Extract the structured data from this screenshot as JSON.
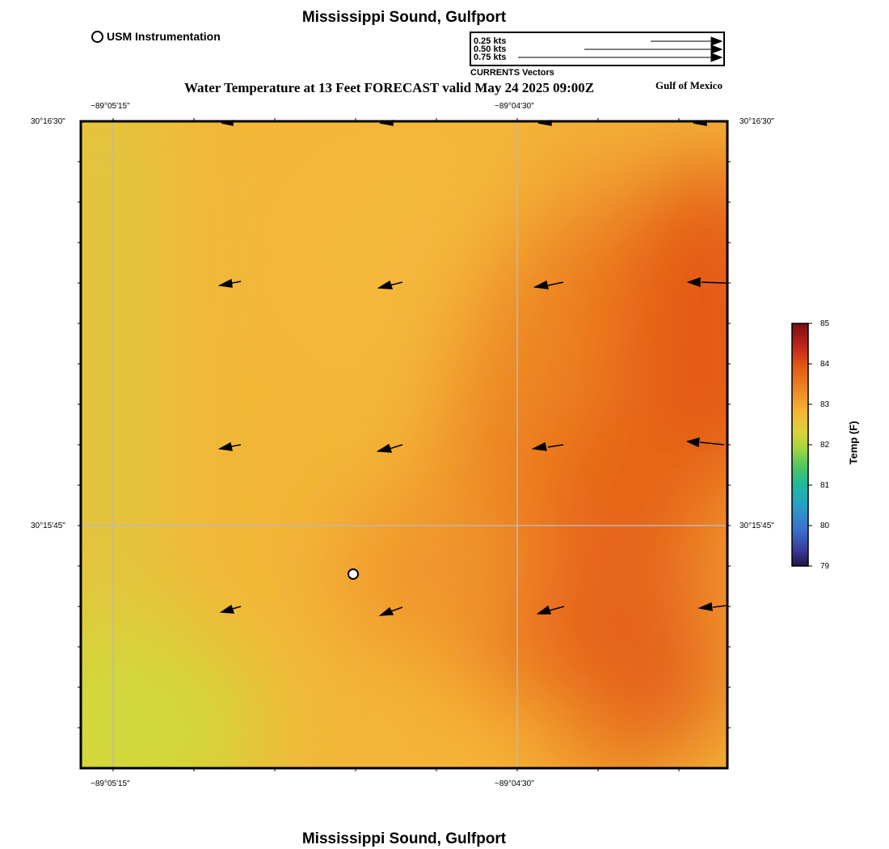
{
  "header": {
    "location_title": "Mississippi Sound, Gulfport",
    "main_title": "Water Temperature at 13 Feet FORECAST valid May 24 2025 09:00Z",
    "region": "Gulf of Mexico"
  },
  "legend": {
    "station_label": "USM Instrumentation",
    "vector_caption": "CURRENTS Vectors",
    "vector_scale": [
      "0.25 kts",
      "0.50 kts",
      "0.75 kts"
    ]
  },
  "axes": {
    "lon_labels": [
      "−89°05'15\"",
      "−89°04'30\""
    ],
    "lat_labels": [
      "30°16'30\"",
      "30°15'45\""
    ]
  },
  "colorbar": {
    "title": "Temp (F)",
    "ticks": [
      "85",
      "84",
      "83",
      "82",
      "81",
      "80",
      "79"
    ],
    "range": [
      79,
      85
    ]
  },
  "footer": {
    "location_title": "Mississippi Sound, Gulfport"
  },
  "colors": {
    "warm_max": "#e35a12",
    "warm_mid": "#f7ae35",
    "cool_edge": "#d4d63a",
    "grid": "#b9b9b9"
  }
}
